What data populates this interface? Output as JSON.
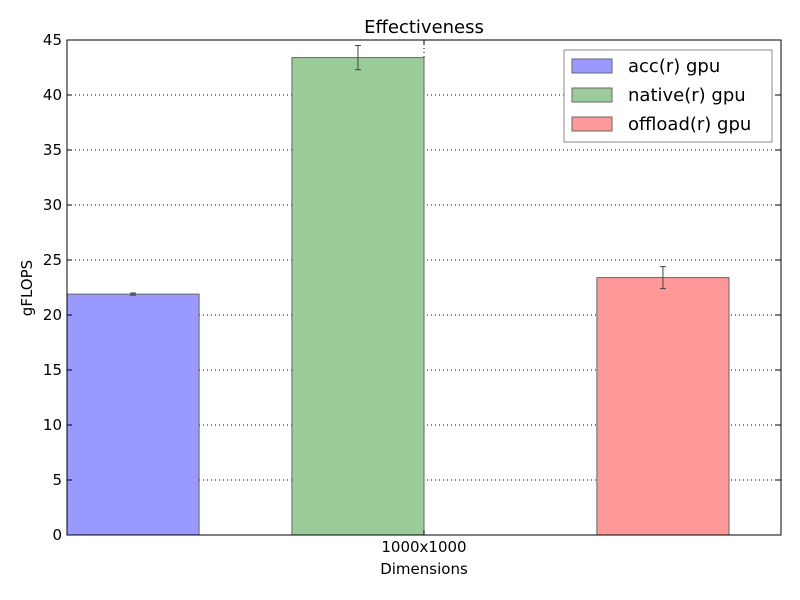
{
  "chart_data": {
    "type": "bar",
    "title": "Effectiveness",
    "xlabel": "Dimensions",
    "ylabel": "gFLOPS",
    "categories": [
      "1000x1000"
    ],
    "ylim": [
      0,
      45
    ],
    "yticks": [
      0,
      5,
      10,
      15,
      20,
      25,
      30,
      35,
      40,
      45
    ],
    "grid": true,
    "legend_position": "top-right",
    "series": [
      {
        "name": "acc(r) gpu",
        "values": [
          21.9
        ],
        "error": [
          0.1
        ],
        "color": "#9999ff"
      },
      {
        "name": "native(r) gpu",
        "values": [
          43.4
        ],
        "error": [
          1.1
        ],
        "color": "#99cc99"
      },
      {
        "name": "offload(r) gpu",
        "values": [
          23.4
        ],
        "error": [
          1.0
        ],
        "color": "#ff9999"
      }
    ]
  }
}
